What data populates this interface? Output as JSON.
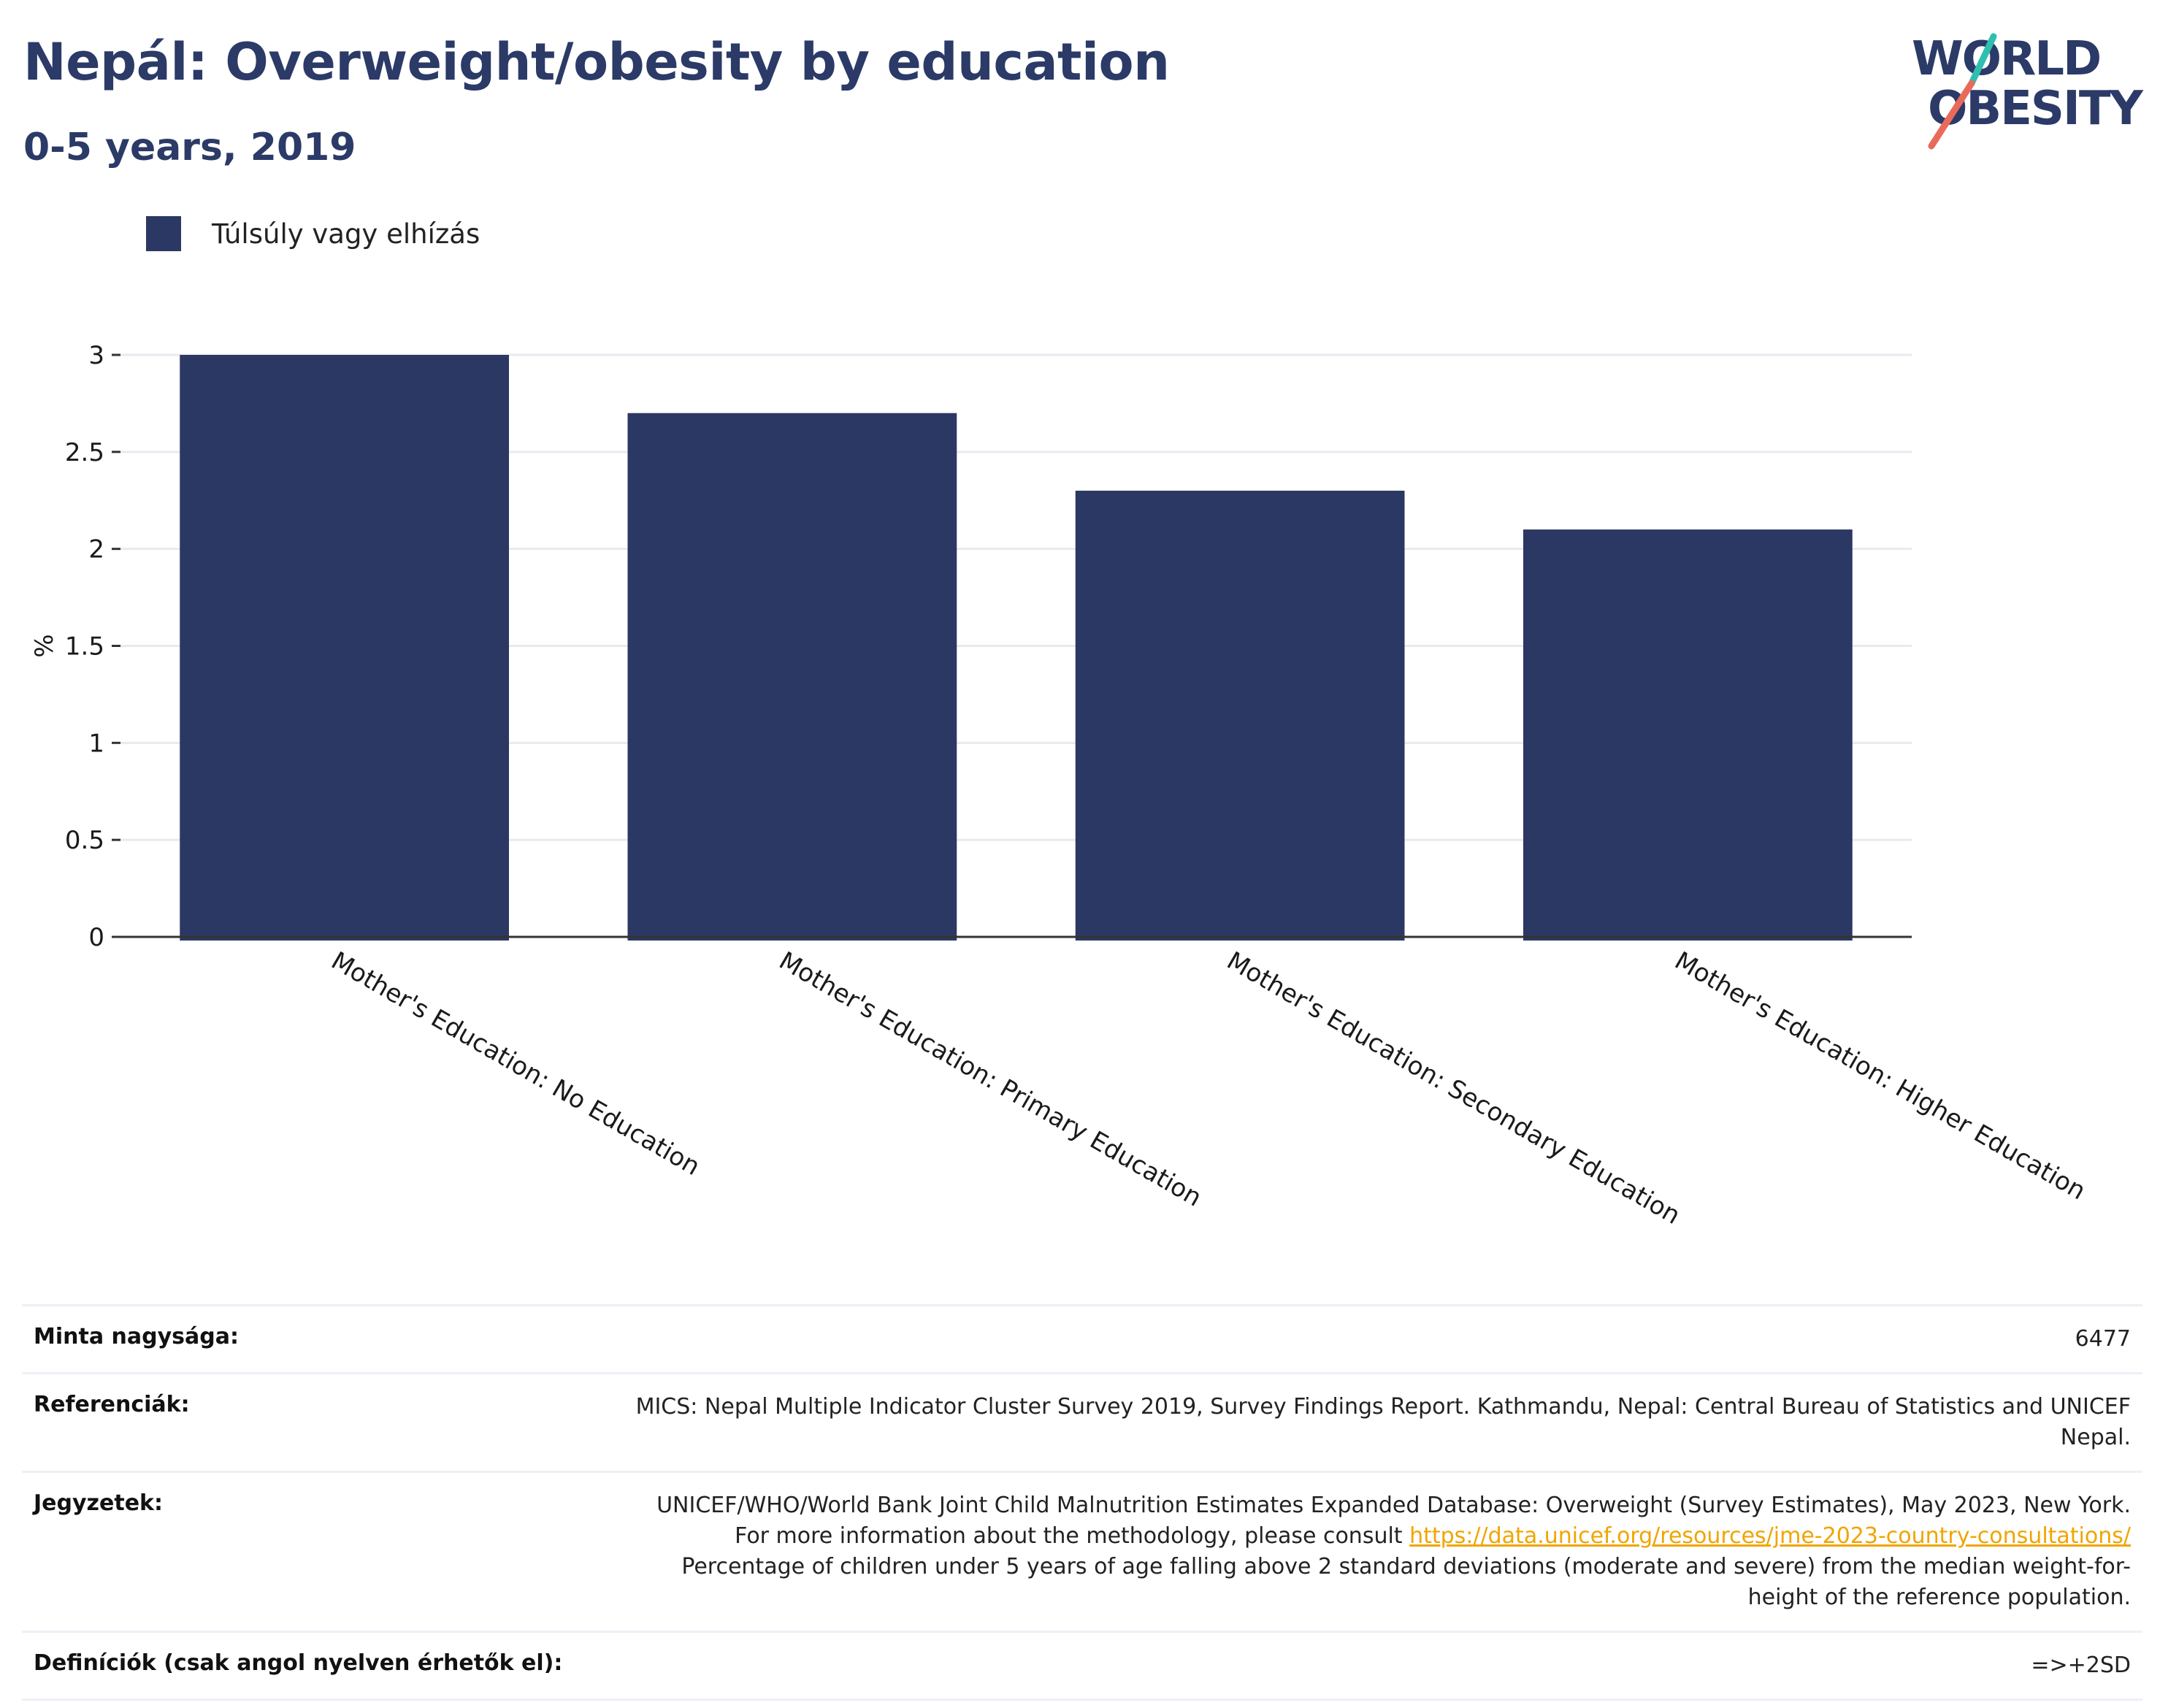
{
  "header": {
    "title": "Nepál: Overweight/obesity by education",
    "subtitle": "0-5 years, 2019"
  },
  "logo": {
    "line1": "WORLD",
    "line2": "OBESITY"
  },
  "colors": {
    "bar": "#2b3863",
    "title": "#2b3a67",
    "grid": "#e8eaf0",
    "link": "#f0a500"
  },
  "chart_data": {
    "type": "bar",
    "categories": [
      "Mother's Education: No Education",
      "Mother's Education: Primary Education",
      "Mother's Education: Secondary Education",
      "Mother's Education: Higher Education"
    ],
    "series": [
      {
        "name": "Túlsúly vagy elhízás",
        "values": [
          3.0,
          2.7,
          2.3,
          2.1
        ]
      }
    ],
    "ylabel": "%",
    "ylim": [
      0,
      3
    ],
    "yticks": [
      0,
      0.5,
      1,
      1.5,
      2,
      2.5,
      3
    ],
    "grid": true,
    "legend": "top-left"
  },
  "footer": {
    "sample_label": "Minta nagysága:",
    "sample_value": "6477",
    "references_label": "Referenciák:",
    "references_value": "MICS: Nepal Multiple Indicator Cluster Survey 2019, Survey Findings Report. Kathmandu, Nepal: Central Bureau of Statistics and UNICEF Nepal.",
    "notes_label": "Jegyzetek:",
    "notes_text1": "UNICEF/WHO/World Bank Joint Child Malnutrition Estimates Expanded Database: Overweight (Survey Estimates), May 2023, New York. For more information about the methodology, please consult ",
    "notes_link": "https://data.unicef.org/resources/jme-2023-country-consultations/",
    "notes_text2": " Percentage of children under 5 years of age falling above 2 standard deviations (moderate and severe) from the median weight-for-height of the reference population.",
    "definitions_label": "Definíciók (csak angol nyelven érhetők el):",
    "definitions_value": "=>+2SD"
  }
}
